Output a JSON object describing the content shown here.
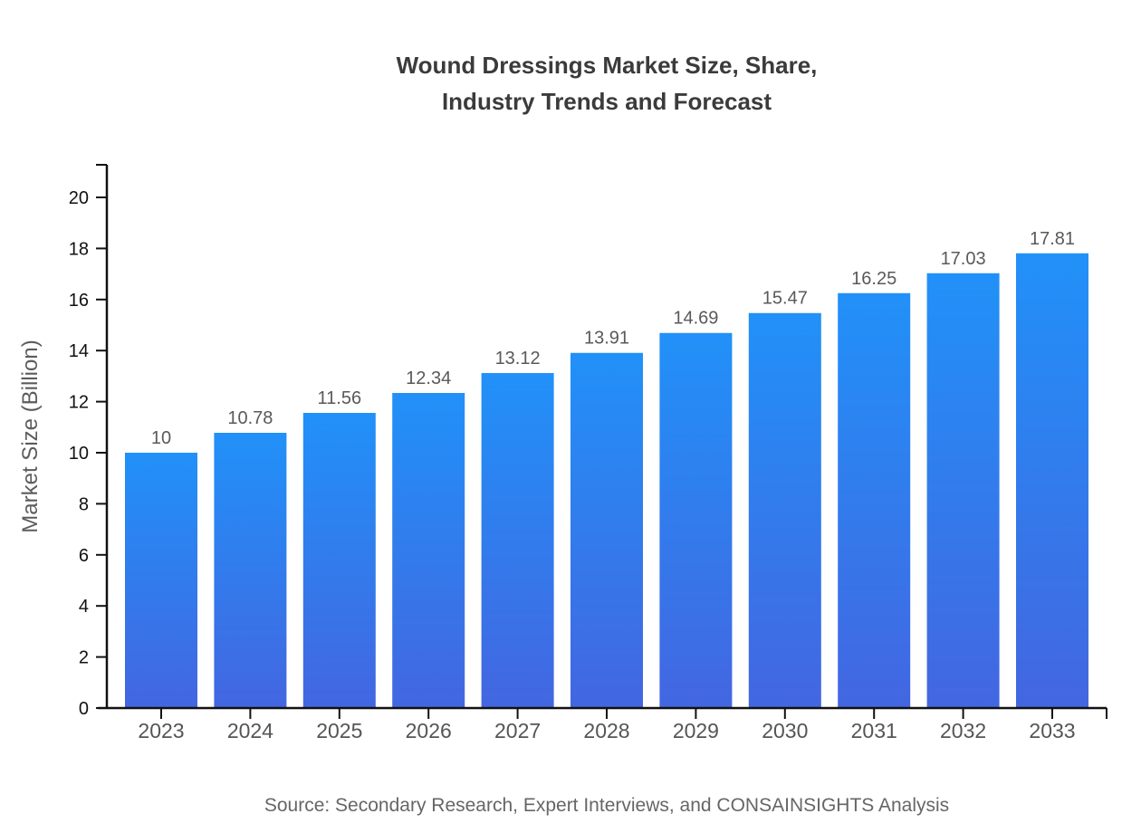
{
  "header": {
    "title_line1": "Wound Dressings Market Size, Share,",
    "title_line2": "Industry Trends and Forecast"
  },
  "footer": {
    "source": "Source: Secondary Research, Expert Interviews, and CONSAINSIGHTS Analysis"
  },
  "colors": {
    "background": "#ffffff",
    "title_text": "#3b3b3b",
    "axis_line": "#111111",
    "ytick_text": "#111111",
    "category_text": "#555555",
    "value_label_text": "#595959",
    "axis_title_text": "#5c5c5c",
    "source_text": "#666666",
    "bar_gradient_top": "#2191f8",
    "bar_gradient_bottom": "#4366e1"
  },
  "chart_data": {
    "type": "bar",
    "title": "Wound Dressings Market Size, Share, Industry Trends and Forecast",
    "categories": [
      "2023",
      "2024",
      "2025",
      "2026",
      "2027",
      "2028",
      "2029",
      "2030",
      "2031",
      "2032",
      "2033"
    ],
    "values": [
      10,
      10.78,
      11.56,
      12.34,
      13.12,
      13.91,
      14.69,
      15.47,
      16.25,
      17.03,
      17.81
    ],
    "value_labels": [
      "10",
      "10.78",
      "11.56",
      "12.34",
      "13.12",
      "13.91",
      "14.69",
      "15.47",
      "16.25",
      "17.03",
      "17.81"
    ],
    "xlabel": "",
    "ylabel": "Market Size (Billion)",
    "ylim": [
      0,
      21.3
    ],
    "yticks": [
      0,
      2,
      4,
      6,
      8,
      10,
      12,
      14,
      16,
      18,
      20
    ],
    "grid": false,
    "legend": "none",
    "bar_style": "vertical gradient, light blue top to royal blue bottom",
    "source": "Source: Secondary Research, Expert Interviews, and CONSAINSIGHTS Analysis"
  }
}
